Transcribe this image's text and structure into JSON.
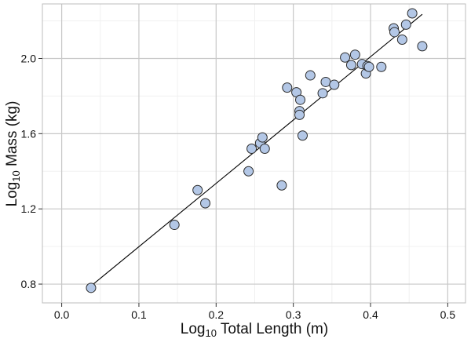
{
  "chart_data": {
    "type": "scatter",
    "title": "",
    "xlabel": "Log10 Total Length (m)",
    "ylabel": "Log10 Mass (kg)",
    "xlabel_parts": {
      "pre": "Log",
      "sub": "10",
      "post": " Total Length (m)"
    },
    "ylabel_parts": {
      "pre": "Log",
      "sub": "10",
      "post": " Mass (kg)"
    },
    "xlim": [
      -0.025,
      0.523
    ],
    "ylim": [
      0.7,
      2.29
    ],
    "xticks": [
      0.0,
      0.1,
      0.2,
      0.3,
      0.4,
      0.5
    ],
    "xtick_labels": [
      "0.0",
      "0.1",
      "0.2",
      "0.3",
      "0.4",
      "0.5"
    ],
    "yticks": [
      0.8,
      1.2,
      1.6,
      2.0
    ],
    "ytick_labels": [
      "0.8",
      "1.2",
      "1.6",
      "2.0"
    ],
    "grid": true,
    "legend": null,
    "marker": {
      "fill": "#b3c7e6",
      "stroke": "#2b2b2b",
      "radius": 6
    },
    "points": [
      {
        "x": 0.038,
        "y": 0.78
      },
      {
        "x": 0.146,
        "y": 1.115
      },
      {
        "x": 0.176,
        "y": 1.3
      },
      {
        "x": 0.186,
        "y": 1.23
      },
      {
        "x": 0.242,
        "y": 1.4
      },
      {
        "x": 0.246,
        "y": 1.52
      },
      {
        "x": 0.257,
        "y": 1.55
      },
      {
        "x": 0.26,
        "y": 1.58
      },
      {
        "x": 0.263,
        "y": 1.52
      },
      {
        "x": 0.285,
        "y": 1.325
      },
      {
        "x": 0.292,
        "y": 1.845
      },
      {
        "x": 0.304,
        "y": 1.82
      },
      {
        "x": 0.309,
        "y": 1.78
      },
      {
        "x": 0.308,
        "y": 1.72
      },
      {
        "x": 0.308,
        "y": 1.7
      },
      {
        "x": 0.312,
        "y": 1.59
      },
      {
        "x": 0.322,
        "y": 1.91
      },
      {
        "x": 0.338,
        "y": 1.815
      },
      {
        "x": 0.342,
        "y": 1.875
      },
      {
        "x": 0.353,
        "y": 1.86
      },
      {
        "x": 0.367,
        "y": 2.005
      },
      {
        "x": 0.375,
        "y": 1.965
      },
      {
        "x": 0.38,
        "y": 2.02
      },
      {
        "x": 0.389,
        "y": 1.97
      },
      {
        "x": 0.394,
        "y": 1.92
      },
      {
        "x": 0.396,
        "y": 1.96
      },
      {
        "x": 0.398,
        "y": 1.955
      },
      {
        "x": 0.414,
        "y": 1.955
      },
      {
        "x": 0.43,
        "y": 2.16
      },
      {
        "x": 0.431,
        "y": 2.14
      },
      {
        "x": 0.441,
        "y": 2.1
      },
      {
        "x": 0.446,
        "y": 2.18
      },
      {
        "x": 0.454,
        "y": 2.24
      },
      {
        "x": 0.467,
        "y": 2.065
      }
    ],
    "fit_line": {
      "x1": 0.038,
      "y1": 0.79,
      "x2": 0.467,
      "y2": 2.235,
      "color": "#000000"
    },
    "colors": {
      "panel_border": "#bdbdbd",
      "grid_major": "#c8c8c8",
      "grid_minor": "#f0f0f0",
      "point_fill": "#b3c7e6"
    }
  }
}
